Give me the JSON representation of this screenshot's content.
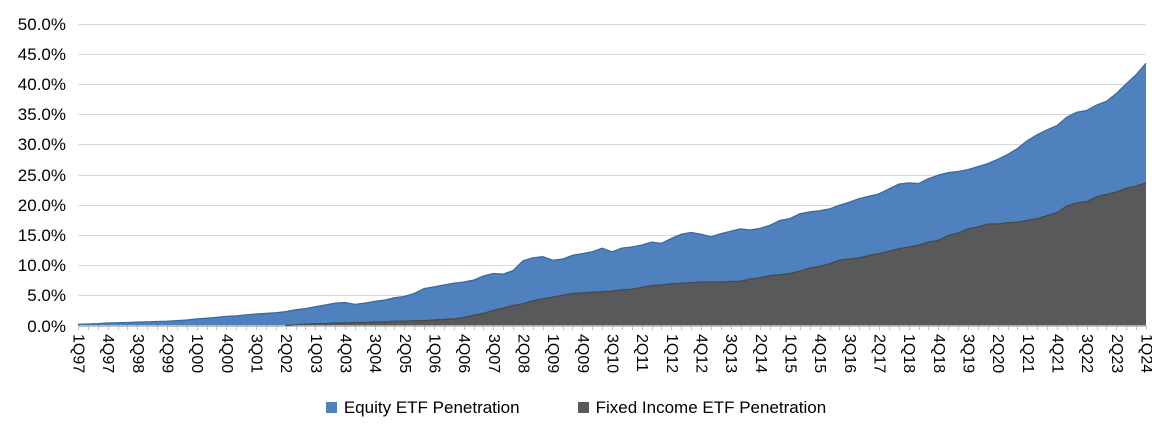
{
  "chart_data": {
    "type": "area",
    "overlapping": true,
    "y_axis": {
      "tick_labels": [
        "0.0%",
        "5.0%",
        "10.0%",
        "15.0%",
        "20.0%",
        "25.0%",
        "30.0%",
        "35.0%",
        "40.0%",
        "45.0%",
        "50.0%"
      ],
      "min": 0,
      "max": 50,
      "step": 5
    },
    "x_axis": {
      "points": 109,
      "first": "1Q97",
      "last": "1Q24",
      "label_every_n_points": 3,
      "visible_tick_labels": [
        "1Q97",
        "4Q97",
        "3Q98",
        "2Q99",
        "1Q00",
        "4Q00",
        "3Q01",
        "2Q02",
        "1Q03",
        "4Q03",
        "3Q04",
        "2Q05",
        "1Q06",
        "4Q06",
        "3Q07",
        "2Q08",
        "1Q09",
        "4Q09",
        "3Q10",
        "2Q11",
        "1Q12",
        "4Q12",
        "3Q13",
        "2Q14",
        "1Q15",
        "4Q15",
        "3Q16",
        "2Q17",
        "1Q18",
        "4Q18",
        "3Q19",
        "2Q20",
        "1Q21",
        "4Q21",
        "3Q22",
        "2Q23",
        "1Q24"
      ]
    },
    "series": [
      {
        "name": "Equity ETF Penetration",
        "color": "#4E81BD",
        "edge_color": "#3A6A9E",
        "values": [
          0.2,
          0.25,
          0.3,
          0.4,
          0.45,
          0.5,
          0.55,
          0.6,
          0.65,
          0.7,
          0.8,
          0.9,
          1.1,
          1.2,
          1.35,
          1.5,
          1.6,
          1.75,
          1.9,
          2.0,
          2.1,
          2.3,
          2.6,
          2.8,
          3.1,
          3.4,
          3.7,
          3.8,
          3.5,
          3.7,
          4.0,
          4.2,
          4.6,
          4.8,
          5.3,
          6.1,
          6.4,
          6.7,
          7.0,
          7.2,
          7.5,
          8.2,
          8.6,
          8.5,
          9.1,
          10.7,
          11.2,
          11.4,
          10.8,
          11.0,
          11.6,
          11.9,
          12.2,
          12.8,
          12.2,
          12.8,
          13.0,
          13.3,
          13.8,
          13.6,
          14.4,
          15.1,
          15.4,
          15.1,
          14.7,
          15.2,
          15.6,
          16.0,
          15.8,
          16.1,
          16.6,
          17.4,
          17.7,
          18.5,
          18.8,
          19.0,
          19.3,
          19.9,
          20.4,
          21.0,
          21.4,
          21.8,
          22.6,
          23.4,
          23.6,
          23.5,
          24.3,
          24.9,
          25.3,
          25.5,
          25.8,
          26.3,
          26.8,
          27.5,
          28.3,
          29.3,
          30.6,
          31.6,
          32.4,
          33.1,
          34.5,
          35.3,
          35.6,
          36.5,
          37.1,
          38.4,
          40.0,
          41.5,
          43.4
        ]
      },
      {
        "name": "Fixed Income ETF Penetration",
        "color": "#58595B",
        "edge_color": "#48494B",
        "values": [
          0,
          0,
          0,
          0,
          0,
          0,
          0,
          0,
          0,
          0,
          0,
          0,
          0,
          0,
          0,
          0,
          0,
          0,
          0,
          0,
          0.0,
          0.0,
          0.1,
          0.2,
          0.3,
          0.3,
          0.4,
          0.4,
          0.5,
          0.5,
          0.6,
          0.6,
          0.7,
          0.7,
          0.8,
          0.8,
          0.9,
          1.0,
          1.1,
          1.3,
          1.7,
          2.0,
          2.5,
          2.9,
          3.3,
          3.6,
          4.1,
          4.4,
          4.7,
          5.0,
          5.3,
          5.4,
          5.5,
          5.6,
          5.7,
          5.9,
          6.0,
          6.3,
          6.6,
          6.7,
          6.9,
          7.0,
          7.1,
          7.2,
          7.2,
          7.2,
          7.3,
          7.3,
          7.7,
          7.9,
          8.3,
          8.4,
          8.6,
          9.0,
          9.5,
          9.8,
          10.2,
          10.8,
          11.0,
          11.2,
          11.6,
          11.9,
          12.3,
          12.7,
          13.0,
          13.3,
          13.8,
          14.1,
          14.9,
          15.3,
          16.0,
          16.3,
          16.8,
          16.8,
          17.0,
          17.1,
          17.4,
          17.7,
          18.2,
          18.7,
          19.8,
          20.3,
          20.5,
          21.3,
          21.7,
          22.1,
          22.7,
          23.1,
          23.6
        ]
      }
    ],
    "grid": true,
    "legend_position": "bottom",
    "colors": {
      "gridline": "#D9D9D9",
      "axis_line": "#BFBFBF",
      "tick_mark": "#BFBFBF",
      "label_text": "#000000",
      "background": "#FFFFFF"
    }
  }
}
